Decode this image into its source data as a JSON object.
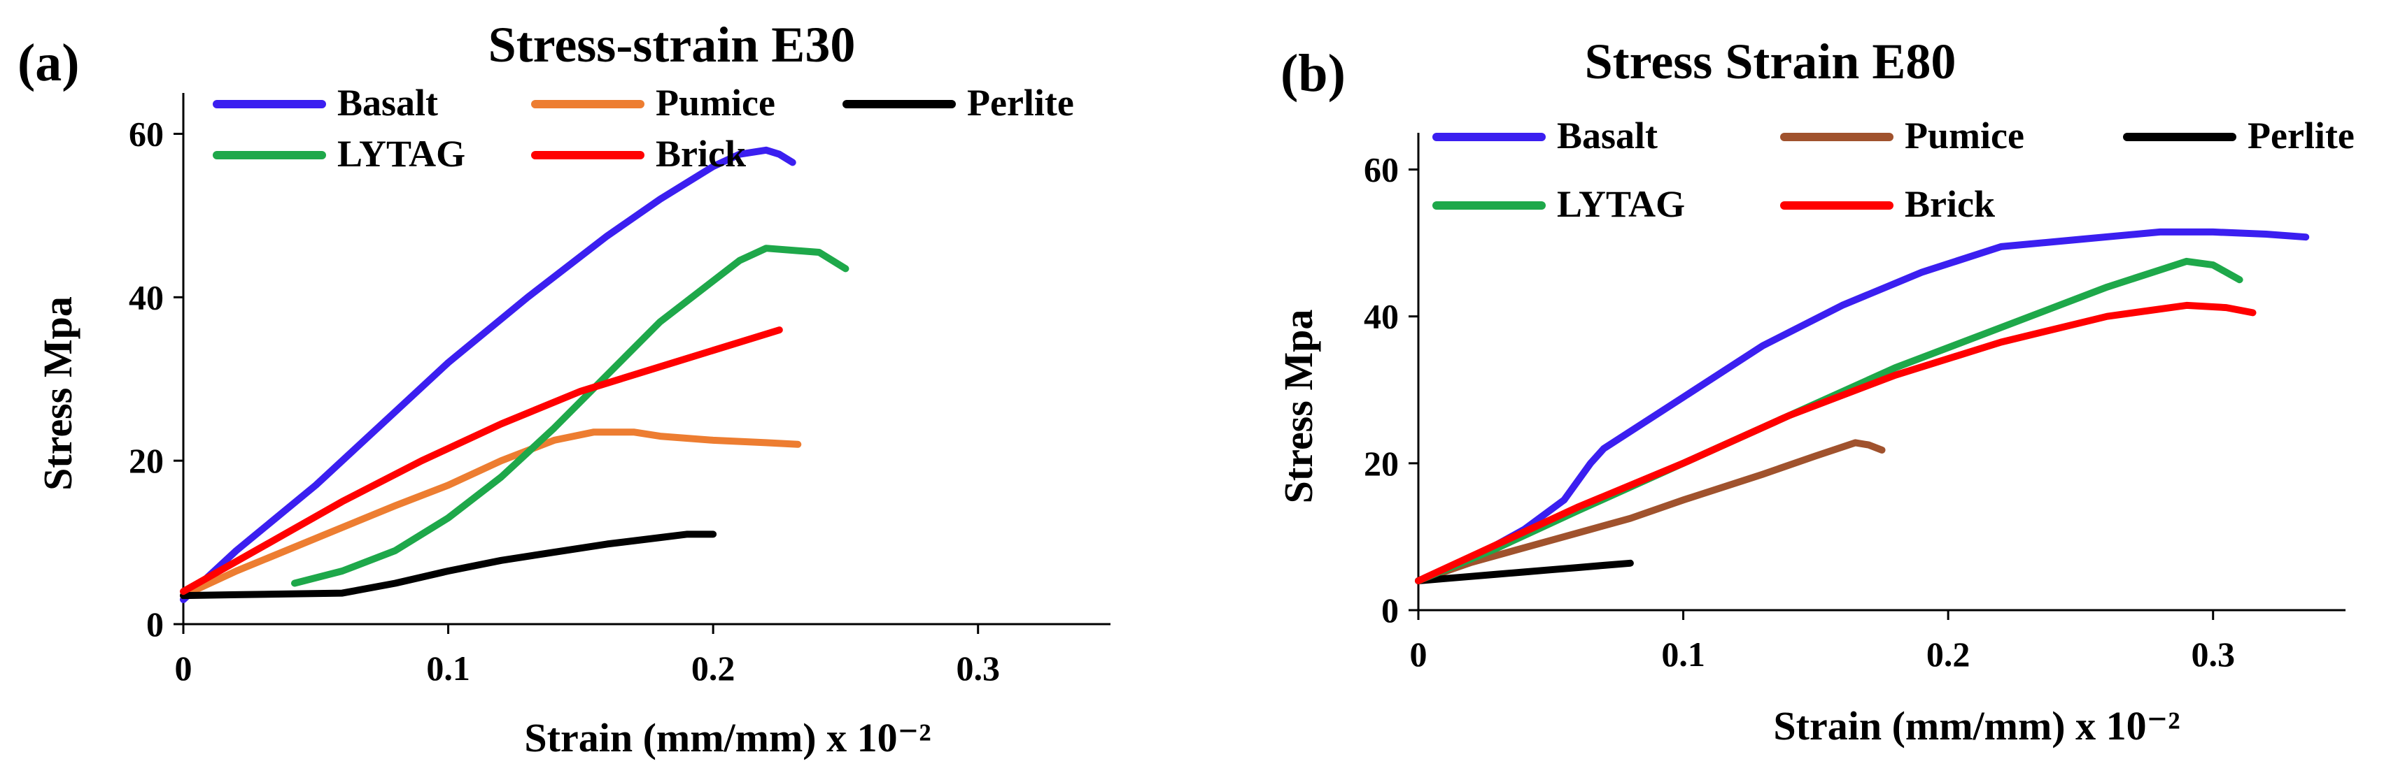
{
  "chart_data": [
    {
      "panel_label": "(a)",
      "type": "line",
      "title": "Stress-strain E30",
      "xlabel": "Strain (mm/mm) x 10⁻²",
      "ylabel": "Stress Mpa",
      "xlim": [
        0,
        0.35
      ],
      "ylim": [
        0,
        65
      ],
      "x_ticks": [
        0,
        0.1,
        0.2,
        0.3
      ],
      "x_tick_labels": [
        "0",
        "0.1",
        "0.2",
        "0.3"
      ],
      "y_ticks": [
        0,
        20,
        40,
        60
      ],
      "y_tick_labels": [
        "0",
        "20",
        "40",
        "60"
      ],
      "grid": false,
      "legend_position": "top",
      "series": [
        {
          "name": "Basalt",
          "color": "#3b1ff0",
          "x": [
            0,
            0.02,
            0.05,
            0.08,
            0.1,
            0.13,
            0.16,
            0.18,
            0.2,
            0.21,
            0.22,
            0.225,
            0.23
          ],
          "y": [
            3,
            9,
            17,
            26,
            32,
            40,
            47.5,
            52,
            56,
            57.5,
            58,
            57.5,
            56.5
          ]
        },
        {
          "name": "Pumice",
          "color": "#ed7d31",
          "x": [
            0,
            0.02,
            0.05,
            0.08,
            0.1,
            0.12,
            0.14,
            0.155,
            0.17,
            0.18,
            0.2,
            0.22,
            0.232
          ],
          "y": [
            3.5,
            6.5,
            10.5,
            14.5,
            17,
            20,
            22.5,
            23.5,
            23.5,
            23,
            22.5,
            22.2,
            22
          ]
        },
        {
          "name": "Perlite",
          "color": "#000000",
          "x": [
            0,
            0.02,
            0.04,
            0.06,
            0.08,
            0.1,
            0.12,
            0.14,
            0.16,
            0.18,
            0.19,
            0.2
          ],
          "y": [
            3.5,
            3.6,
            3.7,
            3.8,
            5,
            6.5,
            7.8,
            8.8,
            9.8,
            10.6,
            11,
            11
          ]
        },
        {
          "name": "LYTAG",
          "color": "#1ea84a",
          "x": [
            0.042,
            0.06,
            0.08,
            0.1,
            0.12,
            0.14,
            0.16,
            0.18,
            0.2,
            0.21,
            0.22,
            0.24,
            0.25
          ],
          "y": [
            5,
            6.5,
            9,
            13,
            18,
            24,
            30.5,
            37,
            42,
            44.5,
            46,
            45.5,
            43.5
          ]
        },
        {
          "name": "Brick",
          "color": "#ff0000",
          "x": [
            0,
            0.03,
            0.06,
            0.09,
            0.12,
            0.15,
            0.18,
            0.2,
            0.225
          ],
          "y": [
            4,
            9.5,
            15,
            20,
            24.5,
            28.5,
            31.5,
            33.5,
            36
          ]
        }
      ]
    },
    {
      "panel_label": "(b)",
      "type": "line",
      "title": "Stress Strain E80",
      "xlabel": "Strain (mm/mm) x 10⁻²",
      "ylabel": "Stress Mpa",
      "xlim": [
        0,
        0.35
      ],
      "ylim": [
        0,
        65
      ],
      "x_ticks": [
        0,
        0.1,
        0.2,
        0.3
      ],
      "x_tick_labels": [
        "0",
        "0.1",
        "0.2",
        "0.3"
      ],
      "y_ticks": [
        0,
        20,
        40,
        60
      ],
      "y_tick_labels": [
        "0",
        "20",
        "40",
        "60"
      ],
      "grid": false,
      "legend_position": "top",
      "series": [
        {
          "name": "Basalt",
          "color": "#3b1ff0",
          "x": [
            0,
            0.02,
            0.04,
            0.055,
            0.065,
            0.07,
            0.1,
            0.13,
            0.16,
            0.19,
            0.22,
            0.25,
            0.28,
            0.3,
            0.32,
            0.335
          ],
          "y": [
            4,
            7,
            11,
            15,
            20,
            22,
            29,
            36,
            41.5,
            46,
            49.5,
            50.5,
            51.5,
            51.5,
            51.2,
            50.8
          ]
        },
        {
          "name": "Pumice",
          "color": "#a0522d",
          "x": [
            0,
            0.02,
            0.05,
            0.08,
            0.1,
            0.13,
            0.15,
            0.165,
            0.17,
            0.175
          ],
          "y": [
            4,
            6.5,
            9.5,
            12.5,
            15,
            18.5,
            21,
            22.8,
            22.5,
            21.8
          ]
        },
        {
          "name": "Perlite",
          "color": "#000000",
          "x": [
            0,
            0.01,
            0.02,
            0.03,
            0.04,
            0.05,
            0.06,
            0.07,
            0.08
          ],
          "y": [
            4,
            4.3,
            4.6,
            4.9,
            5.2,
            5.5,
            5.8,
            6.1,
            6.4
          ]
        },
        {
          "name": "LYTAG",
          "color": "#1ea84a",
          "x": [
            0,
            0.03,
            0.06,
            0.1,
            0.14,
            0.18,
            0.22,
            0.26,
            0.29,
            0.3,
            0.31
          ],
          "y": [
            4,
            8.5,
            13.5,
            20,
            26.5,
            33,
            38.5,
            44,
            47.5,
            47,
            45
          ]
        },
        {
          "name": "Brick",
          "color": "#ff0000",
          "x": [
            0,
            0.03,
            0.06,
            0.1,
            0.14,
            0.18,
            0.22,
            0.26,
            0.29,
            0.305,
            0.315
          ],
          "y": [
            4,
            9,
            14,
            20,
            26.5,
            32,
            36.5,
            40,
            41.5,
            41.2,
            40.5
          ]
        }
      ]
    }
  ]
}
